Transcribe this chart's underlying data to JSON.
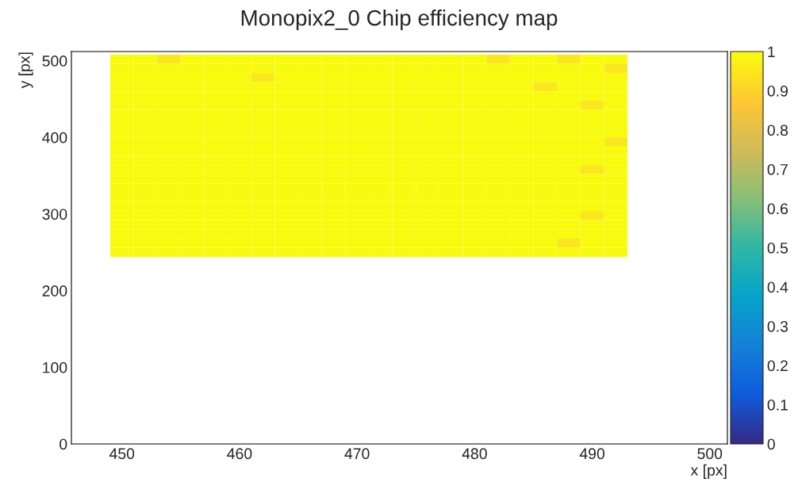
{
  "chart_data": {
    "type": "heatmap",
    "title": "Monopix2_0 Chip efficiency map",
    "xlabel": "x [px]",
    "ylabel": "y [px]",
    "x": [
      450,
      452,
      454,
      456,
      458,
      460,
      462,
      464,
      466,
      468,
      470,
      472,
      474,
      476,
      478,
      480,
      482,
      484,
      486,
      488,
      490,
      492
    ],
    "y": [
      502,
      490,
      478,
      466,
      454,
      442,
      430,
      418,
      406,
      394,
      382,
      370,
      358,
      346,
      334,
      322,
      310,
      298,
      286,
      274,
      262,
      250
    ],
    "cells": [
      [
        1,
        1,
        0.95,
        1,
        1,
        1,
        1,
        1,
        1,
        1,
        1,
        1,
        1,
        1,
        1,
        1,
        0.95,
        1,
        1,
        0.95,
        1,
        1
      ],
      [
        1,
        1,
        1,
        1,
        1,
        1,
        1,
        1,
        1,
        1,
        1,
        1,
        1,
        1,
        1,
        1,
        1,
        1,
        1,
        1,
        1,
        0.95
      ],
      [
        1,
        1,
        1,
        1,
        1,
        1,
        0.95,
        1,
        1,
        1,
        1,
        1,
        1,
        1,
        1,
        1,
        1,
        1,
        1,
        1,
        1,
        1
      ],
      [
        1,
        1,
        1,
        1,
        1,
        1,
        1,
        1,
        1,
        1,
        1,
        1,
        1,
        1,
        1,
        1,
        1,
        1,
        0.95,
        1,
        1,
        1
      ],
      [
        1,
        1,
        1,
        1,
        1,
        1,
        1,
        1,
        1,
        1,
        1,
        1,
        1,
        1,
        1,
        1,
        1,
        1,
        1,
        1,
        1,
        1
      ],
      [
        1,
        1,
        1,
        1,
        1,
        1,
        1,
        1,
        1,
        1,
        1,
        1,
        1,
        1,
        1,
        1,
        1,
        1,
        1,
        1,
        0.95,
        1
      ],
      [
        1,
        1,
        1,
        1,
        1,
        1,
        1,
        1,
        1,
        1,
        1,
        1,
        1,
        1,
        1,
        1,
        1,
        1,
        1,
        1,
        1,
        1
      ],
      [
        1,
        1,
        1,
        1,
        1,
        1,
        1,
        1,
        1,
        1,
        1,
        1,
        1,
        1,
        1,
        1,
        1,
        1,
        1,
        1,
        1,
        1
      ],
      [
        1,
        1,
        1,
        1,
        1,
        1,
        1,
        1,
        1,
        1,
        1,
        1,
        1,
        1,
        1,
        1,
        1,
        1,
        1,
        1,
        1,
        1
      ],
      [
        1,
        1,
        1,
        1,
        1,
        1,
        1,
        1,
        1,
        1,
        1,
        1,
        1,
        1,
        1,
        1,
        1,
        1,
        1,
        1,
        1,
        0.95
      ],
      [
        1,
        1,
        1,
        1,
        1,
        1,
        1,
        1,
        1,
        1,
        1,
        1,
        1,
        1,
        1,
        1,
        1,
        1,
        1,
        1,
        1,
        1
      ],
      [
        1,
        1,
        1,
        1,
        1,
        1,
        1,
        1,
        1,
        1,
        1,
        1,
        1,
        1,
        1,
        1,
        1,
        1,
        1,
        1,
        1,
        1
      ],
      [
        1,
        1,
        1,
        1,
        1,
        1,
        1,
        1,
        1,
        1,
        1,
        1,
        1,
        1,
        1,
        1,
        1,
        1,
        1,
        1,
        0.95,
        1
      ],
      [
        1,
        1,
        1,
        1,
        1,
        1,
        1,
        1,
        1,
        1,
        1,
        1,
        1,
        1,
        1,
        1,
        1,
        1,
        1,
        1,
        1,
        1
      ],
      [
        1,
        1,
        1,
        1,
        1,
        1,
        1,
        1,
        1,
        1,
        1,
        1,
        1,
        1,
        1,
        1,
        1,
        1,
        1,
        1,
        1,
        1
      ],
      [
        1,
        1,
        1,
        1,
        1,
        1,
        1,
        1,
        1,
        1,
        1,
        1,
        1,
        1,
        1,
        1,
        1,
        1,
        1,
        1,
        1,
        1
      ],
      [
        1,
        1,
        1,
        1,
        1,
        1,
        1,
        1,
        1,
        1,
        1,
        1,
        1,
        1,
        1,
        1,
        1,
        1,
        1,
        1,
        1,
        1
      ],
      [
        1,
        1,
        1,
        1,
        1,
        1,
        1,
        1,
        1,
        1,
        1,
        1,
        1,
        1,
        1,
        1,
        1,
        1,
        1,
        1,
        0.95,
        1
      ],
      [
        1,
        1,
        1,
        1,
        1,
        1,
        1,
        1,
        1,
        1,
        1,
        1,
        1,
        1,
        1,
        1,
        1,
        1,
        1,
        1,
        1,
        1
      ],
      [
        1,
        1,
        1,
        1,
        1,
        1,
        1,
        1,
        1,
        1,
        1,
        1,
        1,
        1,
        1,
        1,
        1,
        1,
        1,
        1,
        1,
        1
      ],
      [
        1,
        1,
        1,
        1,
        1,
        1,
        1,
        1,
        1,
        1,
        1,
        1,
        1,
        1,
        1,
        1,
        1,
        1,
        1,
        0.95,
        1,
        1
      ],
      [
        1,
        1,
        1,
        1,
        1,
        1,
        1,
        1,
        1,
        1,
        1,
        1,
        1,
        1,
        1,
        1,
        1,
        1,
        1,
        1,
        1,
        1
      ]
    ],
    "xlim": [
      445.7,
      501.5
    ],
    "xticks": [
      450,
      460,
      470,
      480,
      490,
      500
    ],
    "ylim": [
      0,
      512
    ],
    "yticks": [
      0,
      100,
      200,
      300,
      400,
      500
    ],
    "clim": [
      0,
      1
    ],
    "cticks": [
      0,
      0.1,
      0.2,
      0.3,
      0.4,
      0.5,
      0.6,
      0.7,
      0.8,
      0.9,
      1
    ],
    "grid": false
  }
}
